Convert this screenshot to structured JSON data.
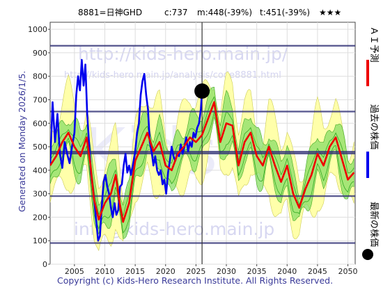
{
  "header": {
    "code_name": "8881=日神GHD",
    "current": "c:737",
    "medium": "m:448(-39%)",
    "target": "t:451(-39%)",
    "stars": "★★★"
  },
  "side_labels": {
    "generated": "Generated on Monday 2026/1/5.",
    "copyright": "Copyright (c) Kids-Hero Research Institute. All Rights Reserved."
  },
  "legend": {
    "ai_forecast": "ＡＩ予測",
    "past_price": "過去の株価",
    "latest_price": "最新の株価"
  },
  "watermarks": {
    "url": "http://kids-hero.main.jp/",
    "analysis_url": "http://kids-hero.main.jp/analysis/code8881.html",
    "email": "info@kids-hero.main.jp",
    "logo": "Kids"
  },
  "colors": {
    "ai_forecast": "#ee0000",
    "past_price": "#0000ee",
    "latest_price": "#000000",
    "band_outer": "#ffffaa",
    "band_inner": "#88dd66",
    "hline": "#333377",
    "background": "#ffffff"
  },
  "chart_data": {
    "type": "line",
    "x_ticks": [
      2005,
      2010,
      2015,
      2020,
      2025,
      2030,
      2035,
      2040,
      2045,
      2050
    ],
    "y_ticks": [
      0,
      100,
      200,
      300,
      400,
      500,
      600,
      700,
      800,
      900,
      1000
    ],
    "xlim": [
      2001.0,
      2051.2
    ],
    "ylim": [
      0,
      1030
    ],
    "grid": true,
    "reference_lines": [
      930,
      650,
      475,
      290,
      90
    ],
    "latest_point": {
      "x": 2026.0,
      "y": 737
    },
    "series": [
      {
        "name": "過去の株価",
        "points": [
          [
            2001.0,
            420
          ],
          [
            2001.4,
            690
          ],
          [
            2001.8,
            520
          ],
          [
            2002.2,
            640
          ],
          [
            2002.6,
            470
          ],
          [
            2003.0,
            410
          ],
          [
            2003.4,
            520
          ],
          [
            2003.8,
            470
          ],
          [
            2004.2,
            430
          ],
          [
            2004.6,
            500
          ],
          [
            2005.0,
            560
          ],
          [
            2005.3,
            720
          ],
          [
            2005.6,
            800
          ],
          [
            2005.9,
            740
          ],
          [
            2006.2,
            870
          ],
          [
            2006.5,
            760
          ],
          [
            2006.8,
            850
          ],
          [
            2007.1,
            640
          ],
          [
            2007.4,
            520
          ],
          [
            2007.7,
            390
          ],
          [
            2008.0,
            330
          ],
          [
            2008.3,
            260
          ],
          [
            2008.6,
            180
          ],
          [
            2008.9,
            100
          ],
          [
            2009.2,
            120
          ],
          [
            2009.5,
            250
          ],
          [
            2009.8,
            350
          ],
          [
            2010.1,
            380
          ],
          [
            2010.4,
            330
          ],
          [
            2010.7,
            300
          ],
          [
            2011.0,
            240
          ],
          [
            2011.3,
            200
          ],
          [
            2011.6,
            260
          ],
          [
            2011.9,
            210
          ],
          [
            2012.2,
            230
          ],
          [
            2012.5,
            330
          ],
          [
            2012.8,
            340
          ],
          [
            2013.1,
            420
          ],
          [
            2013.4,
            470
          ],
          [
            2013.7,
            390
          ],
          [
            2014.0,
            420
          ],
          [
            2014.3,
            380
          ],
          [
            2014.6,
            420
          ],
          [
            2015.0,
            480
          ],
          [
            2015.3,
            560
          ],
          [
            2015.6,
            600
          ],
          [
            2015.9,
            720
          ],
          [
            2016.2,
            780
          ],
          [
            2016.5,
            810
          ],
          [
            2016.8,
            720
          ],
          [
            2017.1,
            660
          ],
          [
            2017.4,
            520
          ],
          [
            2017.7,
            480
          ],
          [
            2018.0,
            420
          ],
          [
            2018.3,
            460
          ],
          [
            2018.6,
            400
          ],
          [
            2018.9,
            380
          ],
          [
            2019.2,
            400
          ],
          [
            2019.5,
            340
          ],
          [
            2019.8,
            360
          ],
          [
            2020.1,
            300
          ],
          [
            2020.4,
            390
          ],
          [
            2020.7,
            440
          ],
          [
            2021.0,
            500
          ],
          [
            2021.3,
            460
          ],
          [
            2021.6,
            440
          ],
          [
            2021.9,
            470
          ],
          [
            2022.2,
            460
          ],
          [
            2022.5,
            510
          ],
          [
            2022.8,
            470
          ],
          [
            2023.1,
            500
          ],
          [
            2023.4,
            540
          ],
          [
            2023.7,
            480
          ],
          [
            2024.0,
            520
          ],
          [
            2024.3,
            500
          ],
          [
            2024.6,
            560
          ],
          [
            2024.9,
            540
          ],
          [
            2025.2,
            580
          ],
          [
            2025.5,
            600
          ],
          [
            2025.8,
            660
          ],
          [
            2026.0,
            737
          ]
        ]
      },
      {
        "name": "ＡＩ予測",
        "points": [
          [
            2001.0,
            420
          ],
          [
            2002.0,
            460
          ],
          [
            2003.0,
            520
          ],
          [
            2004.0,
            560
          ],
          [
            2005.0,
            500
          ],
          [
            2006.0,
            460
          ],
          [
            2007.0,
            540
          ],
          [
            2007.6,
            430
          ],
          [
            2008.2,
            280
          ],
          [
            2009.0,
            190
          ],
          [
            2010.0,
            260
          ],
          [
            2011.0,
            300
          ],
          [
            2011.8,
            380
          ],
          [
            2012.5,
            250
          ],
          [
            2013.0,
            180
          ],
          [
            2014.0,
            260
          ],
          [
            2015.0,
            440
          ],
          [
            2016.0,
            500
          ],
          [
            2017.0,
            560
          ],
          [
            2018.0,
            480
          ],
          [
            2019.0,
            520
          ],
          [
            2020.0,
            420
          ],
          [
            2021.0,
            400
          ],
          [
            2022.0,
            470
          ],
          [
            2023.0,
            500
          ],
          [
            2024.0,
            540
          ],
          [
            2025.0,
            520
          ],
          [
            2026.0,
            550
          ],
          [
            2027.0,
            620
          ],
          [
            2028.0,
            690
          ],
          [
            2029.0,
            520
          ],
          [
            2030.0,
            600
          ],
          [
            2031.0,
            590
          ],
          [
            2032.0,
            420
          ],
          [
            2033.0,
            520
          ],
          [
            2034.0,
            560
          ],
          [
            2035.0,
            460
          ],
          [
            2036.0,
            420
          ],
          [
            2037.0,
            500
          ],
          [
            2038.0,
            420
          ],
          [
            2039.0,
            350
          ],
          [
            2040.0,
            420
          ],
          [
            2041.0,
            300
          ],
          [
            2042.0,
            240
          ],
          [
            2043.0,
            320
          ],
          [
            2044.0,
            380
          ],
          [
            2045.0,
            470
          ],
          [
            2046.0,
            420
          ],
          [
            2047.0,
            500
          ],
          [
            2048.0,
            540
          ],
          [
            2049.0,
            450
          ],
          [
            2050.0,
            360
          ],
          [
            2051.0,
            390
          ]
        ]
      }
    ]
  }
}
